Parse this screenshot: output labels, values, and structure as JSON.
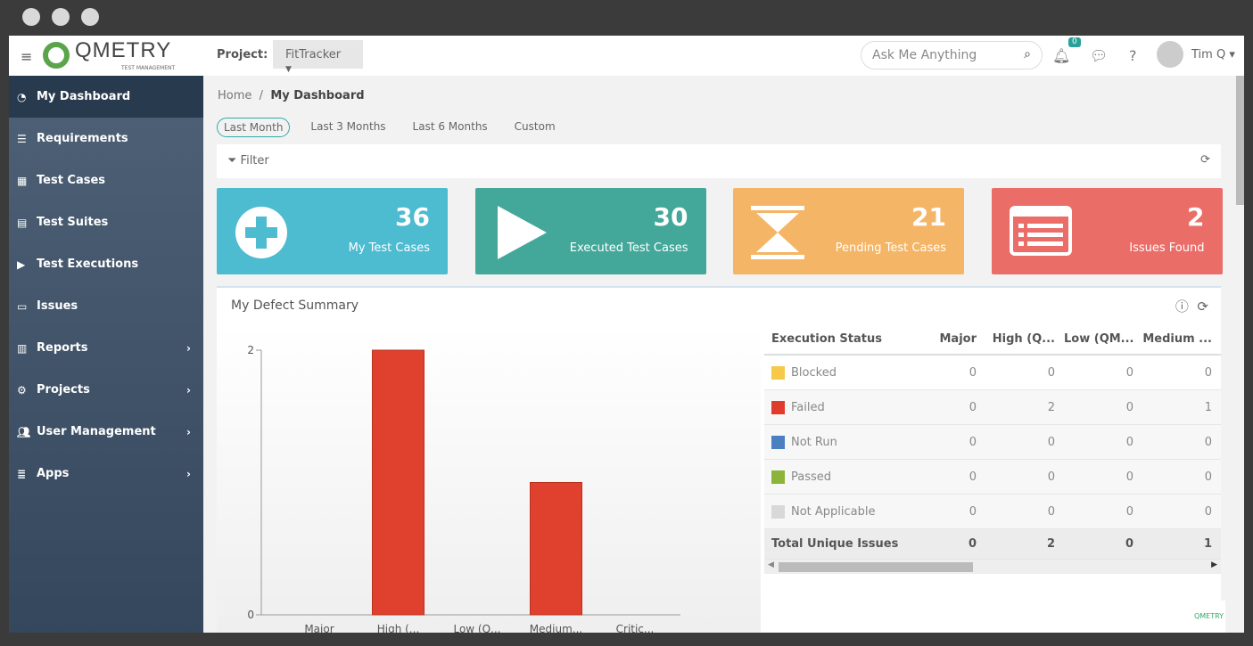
{
  "header": {
    "logo": "QMETRY",
    "logo_sub": "TEST MANAGEMENT",
    "project_label": "Project:",
    "project": "FitTracker",
    "search_placeholder": "Ask Me Anything",
    "notif_count": "0",
    "user": "Tim Q"
  },
  "sidebar": {
    "items": [
      {
        "label": "My Dashboard",
        "icon": "dashboard-icon"
      },
      {
        "label": "Requirements",
        "icon": "list-icon"
      },
      {
        "label": "Test Cases",
        "icon": "grid-icon"
      },
      {
        "label": "Test Suites",
        "icon": "suite-icon"
      },
      {
        "label": "Test Executions",
        "icon": "play-icon"
      },
      {
        "label": "Issues",
        "icon": "issues-icon"
      },
      {
        "label": "Reports",
        "icon": "chart-icon"
      },
      {
        "label": "Projects",
        "icon": "cogs-icon"
      },
      {
        "label": "User Management",
        "icon": "users-icon"
      },
      {
        "label": "Apps",
        "icon": "database-icon"
      }
    ]
  },
  "breadcrumb": {
    "home": "Home",
    "sep": "/",
    "current": "My Dashboard"
  },
  "ranges": [
    "Last Month",
    "Last 3 Months",
    "Last 6 Months",
    "Custom"
  ],
  "filter_label": "Filter",
  "cards": [
    {
      "value": "36",
      "label": "My Test Cases",
      "color": "#4dbbd0"
    },
    {
      "value": "30",
      "label": "Executed Test Cases",
      "color": "#43a89a"
    },
    {
      "value": "21",
      "label": "Pending Test Cases",
      "color": "#f4b566"
    },
    {
      "value": "2",
      "label": "Issues Found",
      "color": "#ea6d68"
    }
  ],
  "defect": {
    "title": "My Defect Summary",
    "table": {
      "headers": [
        "Execution Status",
        "Major",
        "High (Q...",
        "Low (QM...",
        "Medium ..."
      ],
      "rows": [
        {
          "status": "Blocked",
          "color": "#f7c948",
          "values": [
            "0",
            "0",
            "0",
            "0"
          ]
        },
        {
          "status": "Failed",
          "color": "#e03c2d",
          "values": [
            "0",
            "2",
            "0",
            "1"
          ]
        },
        {
          "status": "Not Run",
          "color": "#4a7fc1",
          "values": [
            "0",
            "0",
            "0",
            "0"
          ]
        },
        {
          "status": "Passed",
          "color": "#8db43a",
          "values": [
            "0",
            "0",
            "0",
            "0"
          ]
        },
        {
          "status": "Not Applicable",
          "color": "#d8d8d8",
          "values": [
            "0",
            "0",
            "0",
            "0"
          ]
        }
      ],
      "total": {
        "label": "Total Unique Issues",
        "values": [
          "0",
          "2",
          "0",
          "1"
        ]
      }
    }
  },
  "chart_data": {
    "type": "bar",
    "categories": [
      "Major",
      "High (...",
      "Low (Q...",
      "Medium...",
      "Critic..."
    ],
    "values": [
      0,
      2,
      0,
      1,
      0
    ],
    "ylim": [
      0,
      2
    ],
    "yticks": [
      "0",
      "2"
    ],
    "color": "#e0402e"
  },
  "watermark": "QMETRY"
}
